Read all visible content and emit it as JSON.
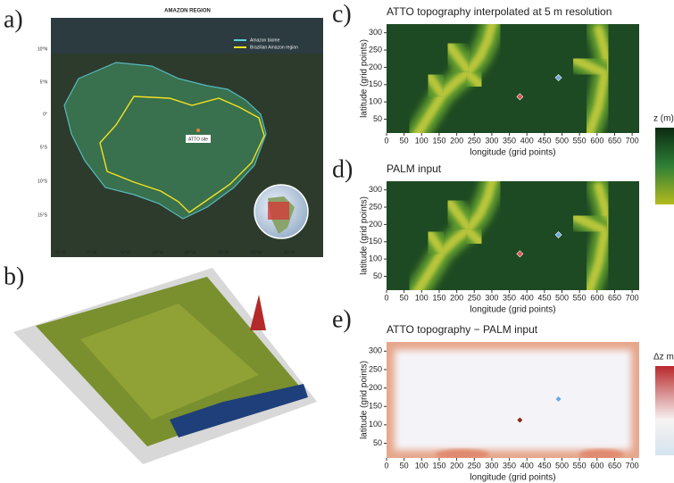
{
  "panel_labels": [
    "a)",
    "b)",
    "c)",
    "d)",
    "e)"
  ],
  "map": {
    "title": "AMAZON REGION",
    "legend": [
      "Amazon biome",
      "Brazilian Amazon region"
    ],
    "site_label": "ATTO site",
    "lat_labels": [
      "10°N",
      "5°N",
      "0°",
      "5°S",
      "10°S",
      "15°S"
    ],
    "lon_labels": [
      "80°W",
      "75°W",
      "70°W",
      "65°W",
      "60°W",
      "55°W",
      "50°W",
      "45°W"
    ]
  },
  "chart_data": [
    {
      "type": "heatmap",
      "colormap": "terrain",
      "title": "ATTO topography interpolated at 5 m resolution",
      "xlabel": "longitude (grid points)",
      "ylabel": "latitude (grid points)",
      "xlim": [
        0,
        720
      ],
      "ylim": [
        10,
        325
      ],
      "xticks": [
        0,
        50,
        100,
        150,
        200,
        250,
        300,
        350,
        400,
        450,
        500,
        550,
        600,
        650,
        700
      ],
      "yticks": [
        50,
        100,
        150,
        200,
        250,
        300
      ],
      "colorbar_label": "z (m)",
      "points": [
        {
          "x": 380,
          "y": 115,
          "color": "#d9534f"
        },
        {
          "x": 490,
          "y": 170,
          "color": "#6fa8dc"
        }
      ]
    },
    {
      "type": "heatmap",
      "colormap": "terrain",
      "title": "PALM input",
      "xlabel": "longitude (grid points)",
      "ylabel": "latitude (grid points)",
      "xlim": [
        0,
        720
      ],
      "ylim": [
        10,
        325
      ],
      "xticks": [
        0,
        50,
        100,
        150,
        200,
        250,
        300,
        350,
        400,
        450,
        500,
        550,
        600,
        650,
        700
      ],
      "yticks": [
        50,
        100,
        150,
        200,
        250,
        300
      ],
      "points": [
        {
          "x": 380,
          "y": 115,
          "color": "#d9534f"
        },
        {
          "x": 490,
          "y": 170,
          "color": "#6fa8dc"
        }
      ]
    },
    {
      "type": "heatmap",
      "colormap": "diverging",
      "title": "ATTO topography − PALM input",
      "xlabel": "longitude (grid points)",
      "ylabel": "latitude (grid points)",
      "xlim": [
        0,
        720
      ],
      "ylim": [
        10,
        325
      ],
      "xticks": [
        0,
        50,
        100,
        150,
        200,
        250,
        300,
        350,
        400,
        450,
        500,
        550,
        600,
        650,
        700
      ],
      "yticks": [
        50,
        100,
        150,
        200,
        250,
        300
      ],
      "colorbar_label": "Δz m",
      "points": [
        {
          "x": 380,
          "y": 113,
          "color": "#8b2a1a"
        },
        {
          "x": 490,
          "y": 170,
          "color": "#6fa8dc"
        }
      ]
    }
  ]
}
